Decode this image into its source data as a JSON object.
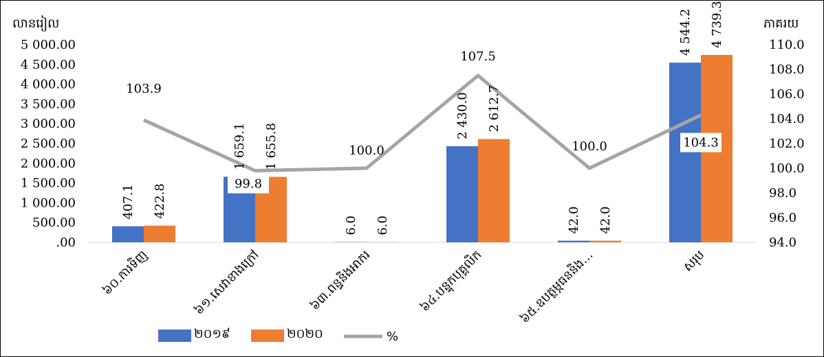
{
  "chart_data": {
    "type": "bar",
    "left_axis_title": "លានរៀល",
    "right_axis_title": "ភាគរយ",
    "categories": [
      "៦០.ការទិញ",
      "៦១.សេវាខាងក្រៅ",
      "៦៣.ពន្ធនិងអាករ",
      "៦៤.បន្ទុកបុគ្គលិក",
      "៦៥.ឧបត្ថម្ភធននិង…",
      "សរុប"
    ],
    "series": [
      {
        "name": "២០១៩",
        "values": [
          407.1,
          1659.1,
          6.0,
          2430.0,
          42.0,
          4544.2
        ],
        "labels": [
          "407.1",
          "1 659.1",
          "6.0",
          "2 430.0",
          "42.0",
          "4 544.2"
        ],
        "color": "#4472C4",
        "axis": "left"
      },
      {
        "name": "២០២០",
        "values": [
          422.8,
          1655.8,
          6.0,
          2612.7,
          42.0,
          4739.3
        ],
        "labels": [
          "422.8",
          "1 655.8",
          "6.0",
          "2 612.7",
          "42.0",
          "4 739.3"
        ],
        "color": "#ED7D31",
        "axis": "left"
      },
      {
        "name": "%",
        "type": "line",
        "values": [
          103.9,
          99.8,
          100.0,
          107.5,
          100.0,
          104.3
        ],
        "labels": [
          "103.9",
          "99.8",
          "100.0",
          "107.5",
          "100.0",
          "104.3"
        ],
        "color": "#A5A5A5",
        "axis": "right"
      }
    ],
    "left_axis": {
      "ylim": [
        0,
        5000
      ],
      "ticks": [
        0,
        500,
        1000,
        1500,
        2000,
        2500,
        3000,
        3500,
        4000,
        4500,
        5000
      ],
      "tick_labels": [
        ".00",
        "500.00",
        "1 000.00",
        "1 500.00",
        "2 000.00",
        "2 500.00",
        "3 000.00",
        "3 500.00",
        "4 000.00",
        "4 500.00",
        "5 000.00"
      ]
    },
    "right_axis": {
      "ylim": [
        94,
        110
      ],
      "ticks": [
        94,
        96,
        98,
        100,
        102,
        104,
        106,
        108,
        110
      ],
      "tick_labels": [
        "94.0",
        "96.0",
        "98.0",
        "100.0",
        "102.0",
        "104.0",
        "106.0",
        "108.0",
        "110.0"
      ]
    },
    "grid": false,
    "legend": {
      "position": "bottom"
    }
  }
}
